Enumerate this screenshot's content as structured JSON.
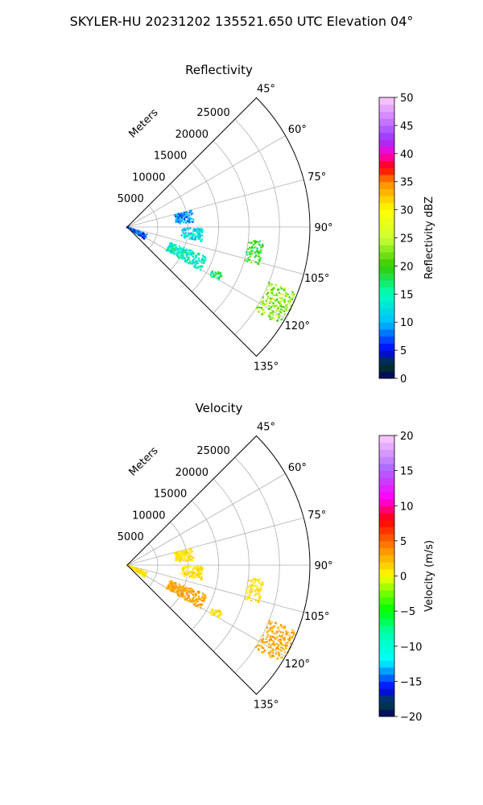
{
  "figure_title": "SKYLER-HU  20231202  135521.650 UTC Elevation 04°",
  "chart_data": [
    {
      "type": "polar-sector",
      "title": "Reflectivity",
      "range_label": "Meters",
      "theta_ticks": [
        "45°",
        "60°",
        "75°",
        "90°",
        "105°",
        "120°",
        "135°"
      ],
      "theta_range_deg": [
        45,
        135
      ],
      "r_ticks": [
        "5000",
        "10000",
        "15000",
        "20000",
        "25000"
      ],
      "r_range": [
        0,
        30000
      ],
      "colorbar": {
        "label": "Reflectivity dBZ",
        "range": [
          0,
          50
        ],
        "ticks": [
          "0",
          "5",
          "10",
          "15",
          "20",
          "25",
          "30",
          "35",
          "40",
          "45",
          "50"
        ]
      },
      "echo_regions": [
        {
          "name": "near-radar",
          "range_m": [
            0,
            3500
          ],
          "az_deg": [
            110,
            125
          ],
          "value": 7
        },
        {
          "name": "north-cells",
          "range_m": [
            8000,
            11000
          ],
          "az_deg": [
            75,
            86
          ],
          "value": 9
        },
        {
          "name": "mid-cells",
          "range_m": [
            9000,
            12500
          ],
          "az_deg": [
            91,
            101
          ],
          "value": 12
        },
        {
          "name": "southwest-cluster",
          "range_m": [
            7500,
            14000
          ],
          "az_deg": [
            110,
            121
          ],
          "value": 14
        },
        {
          "name": "line-east",
          "range_m": [
            20000,
            22500
          ],
          "az_deg": [
            96,
            106
          ],
          "value": 19
        },
        {
          "name": "south-cells",
          "range_m": [
            15500,
            17500
          ],
          "az_deg": [
            116,
            121
          ],
          "value": 17
        },
        {
          "name": "far-southeast-core",
          "range_m": [
            25000,
            30000
          ],
          "az_deg": [
            111,
            123
          ],
          "value": 23
        }
      ]
    },
    {
      "type": "polar-sector",
      "title": "Velocity",
      "range_label": "Meters",
      "theta_ticks": [
        "45°",
        "60°",
        "75°",
        "90°",
        "105°",
        "120°",
        "135°"
      ],
      "theta_range_deg": [
        45,
        135
      ],
      "r_ticks": [
        "5000",
        "10000",
        "15000",
        "20000",
        "25000"
      ],
      "r_range": [
        0,
        30000
      ],
      "colorbar": {
        "label": "Velocity (m/s)",
        "range": [
          -20,
          20
        ],
        "ticks": [
          "−20",
          "−15",
          "−10",
          "−5",
          "0",
          "5",
          "10",
          "15",
          "20"
        ]
      },
      "echo_regions": [
        {
          "name": "near-radar",
          "range_m": [
            0,
            3500
          ],
          "az_deg": [
            110,
            125
          ],
          "value": 1
        },
        {
          "name": "north-cells",
          "range_m": [
            8000,
            11000
          ],
          "az_deg": [
            75,
            86
          ],
          "value": 1
        },
        {
          "name": "mid-cells",
          "range_m": [
            9000,
            12500
          ],
          "az_deg": [
            91,
            101
          ],
          "value": 1
        },
        {
          "name": "southwest-cluster",
          "range_m": [
            7500,
            14000
          ],
          "az_deg": [
            110,
            121
          ],
          "value": 3
        },
        {
          "name": "line-east",
          "range_m": [
            20000,
            22500
          ],
          "az_deg": [
            96,
            106
          ],
          "value": 1
        },
        {
          "name": "south-cells",
          "range_m": [
            15500,
            17500
          ],
          "az_deg": [
            116,
            121
          ],
          "value": 1
        },
        {
          "name": "far-southeast-core",
          "range_m": [
            25000,
            30000
          ],
          "az_deg": [
            111,
            123
          ],
          "value": 3
        }
      ]
    }
  ]
}
